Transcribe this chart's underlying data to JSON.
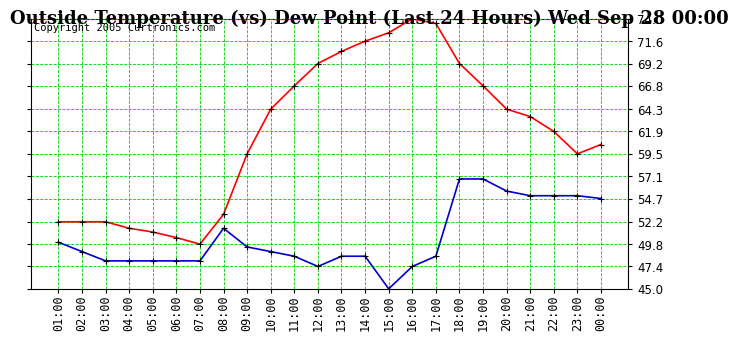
{
  "title": "Outside Temperature (vs) Dew Point (Last 24 Hours) Wed Sep 28 00:00",
  "copyright": "Copyright 2005 Curtronics.com",
  "x_labels": [
    "01:00",
    "02:00",
    "03:00",
    "04:00",
    "05:00",
    "06:00",
    "07:00",
    "08:00",
    "09:00",
    "10:00",
    "11:00",
    "12:00",
    "13:00",
    "14:00",
    "15:00",
    "16:00",
    "17:00",
    "18:00",
    "19:00",
    "20:00",
    "21:00",
    "22:00",
    "23:00",
    "00:00"
  ],
  "temp_data": [
    52.2,
    52.2,
    52.2,
    51.5,
    51.1,
    50.5,
    49.8,
    53.0,
    59.5,
    64.3,
    66.8,
    69.2,
    70.5,
    71.6,
    72.5,
    74.0,
    73.5,
    69.2,
    66.8,
    64.3,
    63.5,
    61.9,
    59.5,
    60.5
  ],
  "dew_data": [
    50.0,
    49.0,
    48.0,
    48.0,
    48.0,
    48.0,
    48.0,
    51.5,
    49.5,
    49.0,
    48.5,
    47.4,
    48.5,
    48.5,
    45.0,
    47.4,
    48.5,
    56.8,
    56.8,
    55.5,
    55.0,
    55.0,
    55.0,
    54.7
  ],
  "temp_color": "#ff0000",
  "dew_color": "#0000cc",
  "bg_color": "#ffffff",
  "plot_bg": "#ffffff",
  "grid_color": "#00cc00",
  "ylim": [
    45.0,
    74.0
  ],
  "yticks": [
    45.0,
    47.4,
    49.8,
    52.2,
    54.7,
    57.1,
    59.5,
    61.9,
    64.3,
    66.8,
    69.2,
    71.6,
    74.0
  ],
  "title_fontsize": 13,
  "copyright_fontsize": 7.5,
  "tick_fontsize": 8.5
}
